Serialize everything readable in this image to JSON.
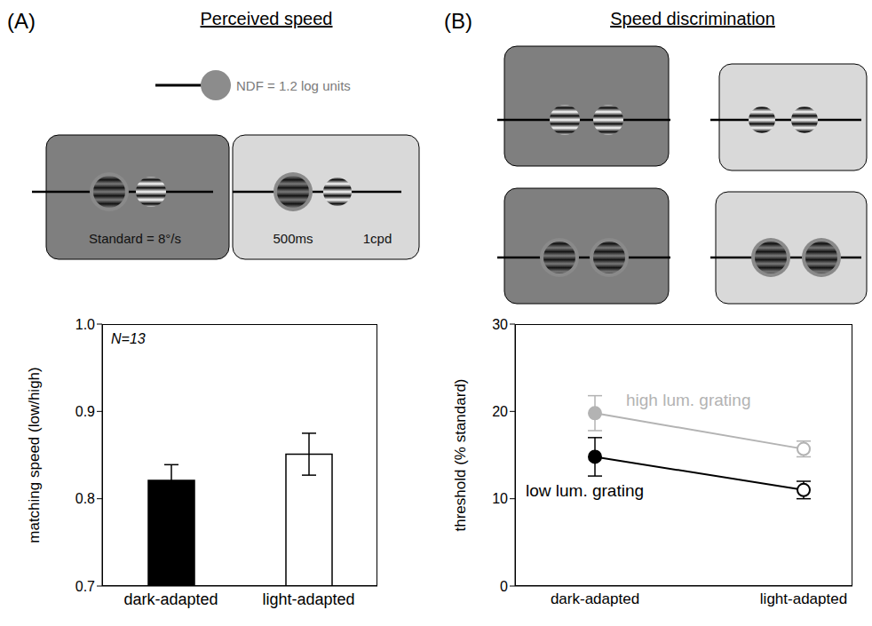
{
  "chart_data": [
    {
      "type": "bar",
      "panel": "(A)",
      "title": "Perceived speed",
      "categories": [
        "dark-adapted",
        "light-adapted"
      ],
      "values": [
        0.821,
        0.851
      ],
      "errors": [
        0.018,
        0.024
      ],
      "colors": [
        "#000000",
        "#ffffff"
      ],
      "ylabel": "matching speed (low/high)",
      "ylim": [
        0.7,
        1.0
      ],
      "yticks": [
        0.7,
        0.8,
        0.9,
        {
          "value": 1.0,
          "label": "1.0"
        }
      ],
      "annotations": [
        "N=13"
      ]
    },
    {
      "type": "line",
      "panel": "(B)",
      "title": "Speed discrimination",
      "categories": [
        "dark-adapted",
        "light-adapted"
      ],
      "series": [
        {
          "name": "high lum. grating",
          "color": "#b3b3b3",
          "values": [
            19.8,
            15.7
          ],
          "errors": [
            2.0,
            0.9
          ],
          "marker": "circle"
        },
        {
          "name": "low lum. grating",
          "color": "#000000",
          "values": [
            14.8,
            11.0
          ],
          "errors": [
            2.2,
            1.0
          ],
          "marker": "circle"
        }
      ],
      "ylabel": "threshold (% standard)",
      "ylim": [
        0,
        30
      ],
      "yticks": [
        0,
        10,
        20,
        30
      ]
    }
  ],
  "schematic": {
    "filter_label": "NDF = 1.2 log units",
    "standard_label": "Standard = 8°/s",
    "duration_label": "500ms",
    "frequency_label": "1cpd"
  }
}
